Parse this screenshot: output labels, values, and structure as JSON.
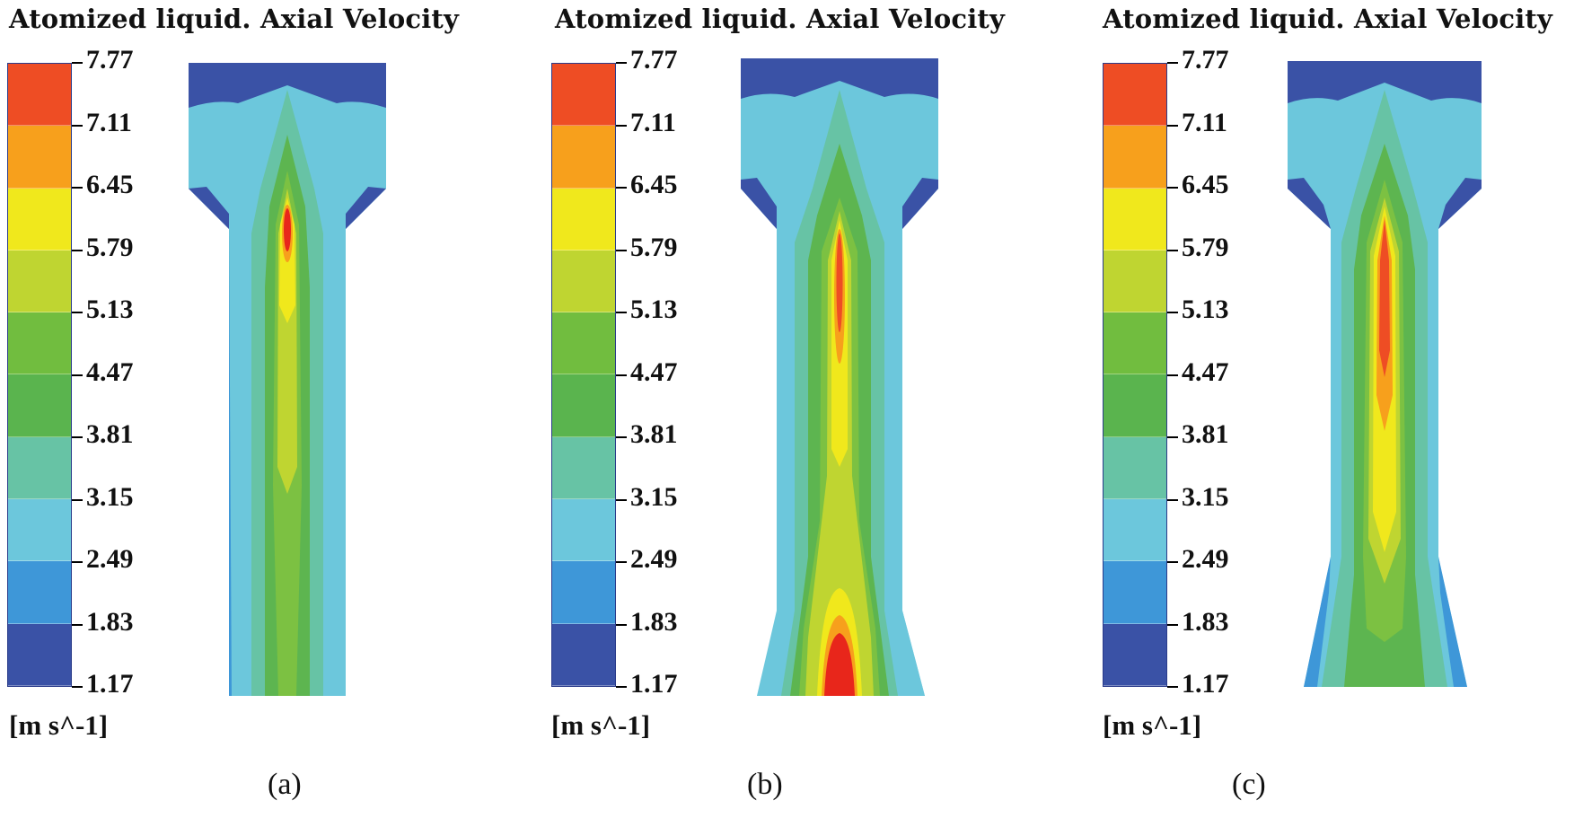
{
  "figure": {
    "colors": {
      "c0": "#3a52a6",
      "c1": "#3e97d8",
      "c2": "#6cc7dc",
      "c3": "#67c3a5",
      "c4": "#5db550",
      "c5": "#7cc142",
      "c6": "#bfd531",
      "c7": "#f0e81c",
      "c8": "#f7a01c",
      "c9": "#ee4d24",
      "c10": "#e8261b"
    },
    "panels": [
      {
        "title": "Atomized liquid. Axial Velocity",
        "unit": "[m s^-1]",
        "caption": "(a)",
        "legend_ticks": [
          "7.77",
          "7.11",
          "6.45",
          "5.79",
          "5.13",
          "4.47",
          "3.81",
          "3.15",
          "2.49",
          "1.83",
          "1.17"
        ]
      },
      {
        "title": "Atomized liquid. Axial Velocity",
        "unit": "[m s^-1]",
        "caption": "(b)",
        "legend_ticks": [
          "7.77",
          "7.11",
          "6.45",
          "5.79",
          "5.13",
          "4.47",
          "3.81",
          "3.15",
          "2.49",
          "1.83",
          "1.17"
        ]
      },
      {
        "title": "Atomized liquid. Axial Velocity",
        "unit": "[m s^-1]",
        "caption": "(c)",
        "legend_ticks": [
          "7.77",
          "7.11",
          "6.45",
          "5.79",
          "5.13",
          "4.47",
          "3.81",
          "3.15",
          "2.49",
          "1.83",
          "1.17"
        ]
      }
    ]
  }
}
